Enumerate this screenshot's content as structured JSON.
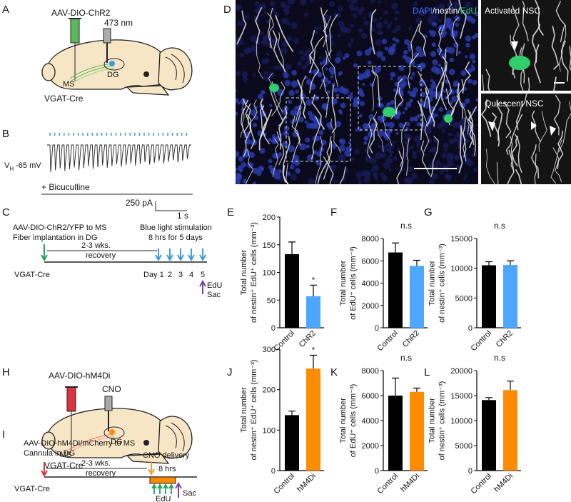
{
  "figure": {
    "a": {
      "letter": "A",
      "virus": "AAV-DIO-ChR2",
      "light": "473 nm",
      "ms": "MS",
      "dg": "DG",
      "mouse": "VGAT-Cre"
    },
    "b": {
      "letter": "B",
      "vh": "V",
      "vh_sub": "H",
      "vh_value": "-65 mV",
      "drug": "+ Bicuculline",
      "scale_y": "250 pA",
      "scale_x": "1 s"
    },
    "c": {
      "letter": "C",
      "line1": "AAV-DIO-ChR2/YFP to MS",
      "line2": "Fiber implantation in DG",
      "recovery1": "2-3 wks.",
      "recovery2": "recovery",
      "stim1": "Blue light stimulation",
      "stim2": "8 hrs for 5 days",
      "mouse": "VGAT-Cre",
      "days": [
        "Day 1",
        "2",
        "3",
        "4",
        "5"
      ],
      "edu": "EdU",
      "sac": "Sac"
    },
    "d": {
      "letter": "D",
      "stains": [
        "DAPI",
        "/nestin/",
        "EdU"
      ],
      "activated": "Activated NSC",
      "quiescent": "Quiescent NSC"
    },
    "h": {
      "letter": "H",
      "virus": "AAV-DIO-hM4Di",
      "drug": "CNO",
      "ms": "MS",
      "dg": "DG",
      "mouse": "VGAT-Cre"
    },
    "i": {
      "letter": "I",
      "line1": "AAV-DIO-hM4Di/mCherry to MS",
      "line2": "Cannula in DG",
      "recovery1": "2-3 wks.",
      "recovery2": "recovery",
      "delivery": "CNO delivery",
      "hours": "8 hrs",
      "edu": "EdU",
      "sac": "Sac",
      "mouse": "VGAT-Cre"
    }
  },
  "chart_data": [
    {
      "type": "bar",
      "panel": "E",
      "ylabel": [
        "Total number",
        "of nestin⁺ EdU⁺ cells (mm⁻³)"
      ],
      "categories": [
        "Control",
        "ChR2"
      ],
      "values": [
        133,
        57
      ],
      "errors": [
        22,
        20
      ],
      "colors": [
        "#000000",
        "#4da6ff"
      ],
      "ylim": [
        0,
        200
      ],
      "yticks": [
        0,
        50,
        100,
        150,
        200
      ],
      "annotation": "*"
    },
    {
      "type": "bar",
      "panel": "F",
      "ylabel": [
        "Total number",
        "of EdU⁺ cells (mm⁻³)"
      ],
      "categories": [
        "Control",
        "ChR2"
      ],
      "values": [
        6750,
        5550
      ],
      "errors": [
        850,
        500
      ],
      "colors": [
        "#000000",
        "#4da6ff"
      ],
      "ylim": [
        0,
        8000
      ],
      "yticks": [
        0,
        2000,
        4000,
        6000,
        8000
      ],
      "annotation": "n.s"
    },
    {
      "type": "bar",
      "panel": "G",
      "ylabel": [
        "Total number",
        "of nestin⁺ cells (mm⁻³)"
      ],
      "categories": [
        "Control",
        "ChR2"
      ],
      "values": [
        10500,
        10550
      ],
      "errors": [
        600,
        700
      ],
      "colors": [
        "#000000",
        "#4da6ff"
      ],
      "ylim": [
        0,
        15000
      ],
      "yticks": [
        0,
        5000,
        10000,
        15000
      ],
      "annotation": "n.s"
    },
    {
      "type": "bar",
      "panel": "J",
      "ylabel": [
        "Total number",
        "of nestin⁺ EdU⁺ cells (mm⁻³)"
      ],
      "categories": [
        "Control",
        "hM4Di"
      ],
      "values": [
        137,
        252
      ],
      "errors": [
        10,
        33
      ],
      "colors": [
        "#000000",
        "#ff8c00"
      ],
      "ylim": [
        0,
        300
      ],
      "yticks": [
        0,
        100,
        200,
        300
      ],
      "annotation": "*"
    },
    {
      "type": "bar",
      "panel": "K",
      "ylabel": [
        "Total number",
        "of EdU⁺ cells (mm⁻³)"
      ],
      "categories": [
        "Control",
        "hM4Di"
      ],
      "values": [
        6000,
        6300
      ],
      "errors": [
        1400,
        300
      ],
      "colors": [
        "#000000",
        "#ff8c00"
      ],
      "ylim": [
        0,
        8000
      ],
      "yticks": [
        0,
        2000,
        4000,
        6000,
        8000
      ],
      "annotation": "n.s"
    },
    {
      "type": "bar",
      "panel": "L",
      "ylabel": [
        "Total number",
        "of nestin⁺ cells (mm⁻³)"
      ],
      "categories": [
        "Control",
        "hM4Di"
      ],
      "values": [
        14100,
        16100
      ],
      "errors": [
        500,
        1800
      ],
      "colors": [
        "#000000",
        "#ff8c00"
      ],
      "ylim": [
        0,
        20000
      ],
      "yticks": [
        0,
        5000,
        10000,
        15000,
        20000
      ],
      "annotation": "n.s"
    }
  ]
}
